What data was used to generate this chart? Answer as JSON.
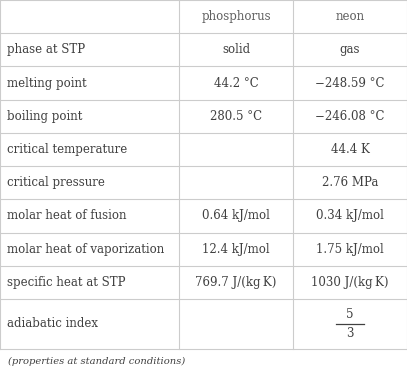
{
  "col_headers": [
    "",
    "phosphorus",
    "neon"
  ],
  "rows": [
    [
      "phase at STP",
      "solid",
      "gas"
    ],
    [
      "melting point",
      "44.2 °C",
      "−248.59 °C"
    ],
    [
      "boiling point",
      "280.5 °C",
      "−246.08 °C"
    ],
    [
      "critical temperature",
      "",
      "44.4 K"
    ],
    [
      "critical pressure",
      "",
      "2.76 MPa"
    ],
    [
      "molar heat of fusion",
      "0.64 kJ/mol",
      "0.34 kJ/mol"
    ],
    [
      "molar heat of vaporization",
      "12.4 kJ/mol",
      "1.75 kJ/mol"
    ],
    [
      "specific heat at STP",
      "769.7 J/(kg K)",
      "1030 J/(kg K)"
    ],
    [
      "adiabatic index",
      "",
      ""
    ]
  ],
  "footer": "(properties at standard conditions)",
  "bg_color": "#ffffff",
  "grid_color": "#cccccc",
  "text_color": "#404040",
  "header_text_color": "#606060",
  "font_size": 8.5,
  "header_font_size": 8.5,
  "footer_font_size": 7.2,
  "fraction_num": "5",
  "fraction_den": "3"
}
